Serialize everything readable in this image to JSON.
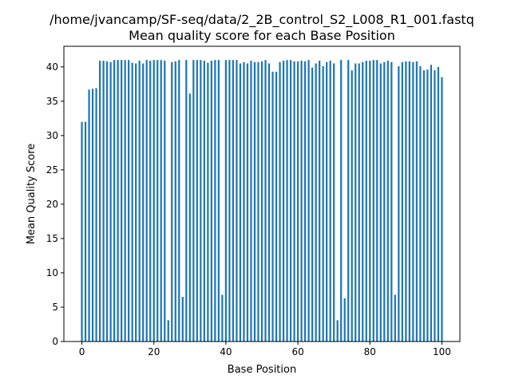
{
  "chart_data": {
    "type": "bar",
    "title": "/home/jvancamp/SF-seq/data/2_2B_control_S2_L008_R1_001.fastq",
    "subtitle": "Mean quality score for each Base Position",
    "xlabel": "Base Position",
    "ylabel": "Mean Quality Score",
    "xlim": [
      -5,
      105
    ],
    "ylim": [
      0,
      43
    ],
    "xticks": [
      0,
      20,
      40,
      60,
      80,
      100
    ],
    "yticks": [
      0,
      5,
      10,
      15,
      20,
      25,
      30,
      35,
      40
    ],
    "grid": false,
    "bar_color": "#1f77b4",
    "x": [
      0,
      1,
      2,
      3,
      4,
      5,
      6,
      7,
      8,
      9,
      10,
      11,
      12,
      13,
      14,
      15,
      16,
      17,
      18,
      19,
      20,
      21,
      22,
      23,
      24,
      25,
      26,
      27,
      28,
      29,
      30,
      31,
      32,
      33,
      34,
      35,
      36,
      37,
      38,
      39,
      40,
      41,
      42,
      43,
      44,
      45,
      46,
      47,
      48,
      49,
      50,
      51,
      52,
      53,
      54,
      55,
      56,
      57,
      58,
      59,
      60,
      61,
      62,
      63,
      64,
      65,
      66,
      67,
      68,
      69,
      70,
      71,
      72,
      73,
      74,
      75,
      76,
      77,
      78,
      79,
      80,
      81,
      82,
      83,
      84,
      85,
      86,
      87,
      88,
      89,
      90,
      91,
      92,
      93,
      94,
      95,
      96,
      97,
      98,
      99,
      100
    ],
    "values": [
      32.0,
      32.0,
      36.7,
      36.8,
      36.9,
      40.9,
      40.9,
      40.8,
      40.7,
      41.0,
      41.0,
      41.0,
      41.0,
      41.0,
      40.6,
      40.5,
      40.9,
      40.5,
      41.0,
      40.9,
      41.0,
      41.0,
      41.0,
      40.9,
      3.1,
      40.7,
      40.8,
      41.0,
      6.5,
      41.0,
      36.1,
      41.0,
      41.0,
      41.0,
      40.9,
      40.6,
      40.9,
      41.0,
      41.0,
      6.8,
      41.0,
      41.0,
      41.0,
      41.0,
      40.5,
      40.7,
      40.5,
      40.9,
      40.7,
      40.7,
      40.8,
      41.0,
      40.5,
      39.3,
      39.3,
      40.7,
      40.9,
      41.0,
      41.0,
      40.8,
      40.8,
      40.9,
      40.8,
      41.0,
      39.9,
      40.5,
      40.9,
      40.1,
      40.7,
      40.9,
      40.5,
      3.1,
      41.0,
      6.3,
      41.0,
      39.5,
      40.5,
      40.5,
      40.7,
      40.9,
      40.9,
      41.0,
      41.0,
      40.5,
      40.7,
      40.9,
      40.7,
      6.8,
      40.1,
      40.7,
      40.8,
      40.8,
      40.7,
      40.8,
      40.1,
      39.5,
      39.6,
      40.3,
      39.5,
      40.0,
      38.5
    ]
  }
}
